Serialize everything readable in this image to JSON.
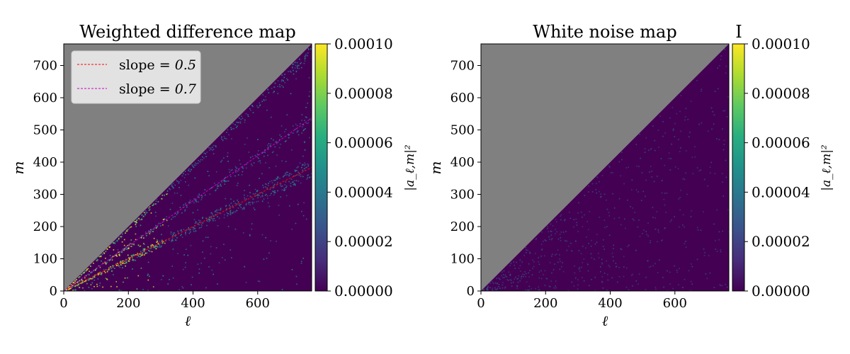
{
  "chart_data": [
    {
      "type": "heatmap",
      "title": "Weighted difference map",
      "xlabel": "ℓ",
      "ylabel": "m",
      "xlim": [
        0,
        767
      ],
      "ylim": [
        0,
        767
      ],
      "xticks": [
        "0",
        "200",
        "400",
        "600"
      ],
      "xtick_values": [
        0,
        200,
        400,
        600
      ],
      "yticks": [
        "0",
        "100",
        "200",
        "300",
        "400",
        "500",
        "600",
        "700"
      ],
      "ytick_values": [
        0,
        100,
        200,
        300,
        400,
        500,
        600,
        700
      ],
      "masked_region": "m > ℓ (gray)",
      "colorbar": {
        "label": "|a_ℓ,m|²",
        "range": [
          0,
          0.0001
        ],
        "ticks": [
          "0.00000",
          "0.00002",
          "0.00004",
          "0.00006",
          "0.00008",
          "0.00010"
        ],
        "tick_values": [
          0,
          2e-05,
          4e-05,
          6e-05,
          8e-05,
          0.0001
        ],
        "colormap": "viridis"
      },
      "lines": [
        {
          "name": "slope = 0.5",
          "slope": 0.5,
          "color": "#ff0000",
          "style": "dashed"
        },
        {
          "name": "slope = 0.7",
          "slope": 0.7,
          "color": "#cc00cc",
          "style": "dashed"
        }
      ],
      "legend": {
        "placement": "upper-left",
        "entries": [
          {
            "prefix": "slope",
            "value": "0.5",
            "color": "#ff0000"
          },
          {
            "prefix": "slope",
            "value": "0.7",
            "color": "#cc00cc"
          }
        ]
      }
    },
    {
      "type": "heatmap",
      "title": "White noise map",
      "xlabel": "ℓ",
      "ylabel": "m",
      "xlim": [
        0,
        767
      ],
      "ylim": [
        0,
        767
      ],
      "xticks": [
        "0",
        "200",
        "400",
        "600"
      ],
      "xtick_values": [
        0,
        200,
        400,
        600
      ],
      "yticks": [
        "0",
        "100",
        "200",
        "300",
        "400",
        "500",
        "600",
        "700"
      ],
      "ytick_values": [
        0,
        100,
        200,
        300,
        400,
        500,
        600,
        700
      ],
      "masked_region": "m > ℓ (gray)",
      "colorbar": {
        "label": "|a_ℓ,m|²",
        "range": [
          0,
          0.0001
        ],
        "ticks": [
          "0.00000",
          "0.00002",
          "0.00004",
          "0.00006",
          "0.00008",
          "0.00010"
        ],
        "tick_values": [
          0,
          2e-05,
          4e-05,
          6e-05,
          8e-05,
          0.0001
        ],
        "colormap": "viridis"
      },
      "extra_text": "I"
    }
  ],
  "colors": {
    "masked": "#808080",
    "background_cell": "#440154",
    "axis": "#000000"
  }
}
